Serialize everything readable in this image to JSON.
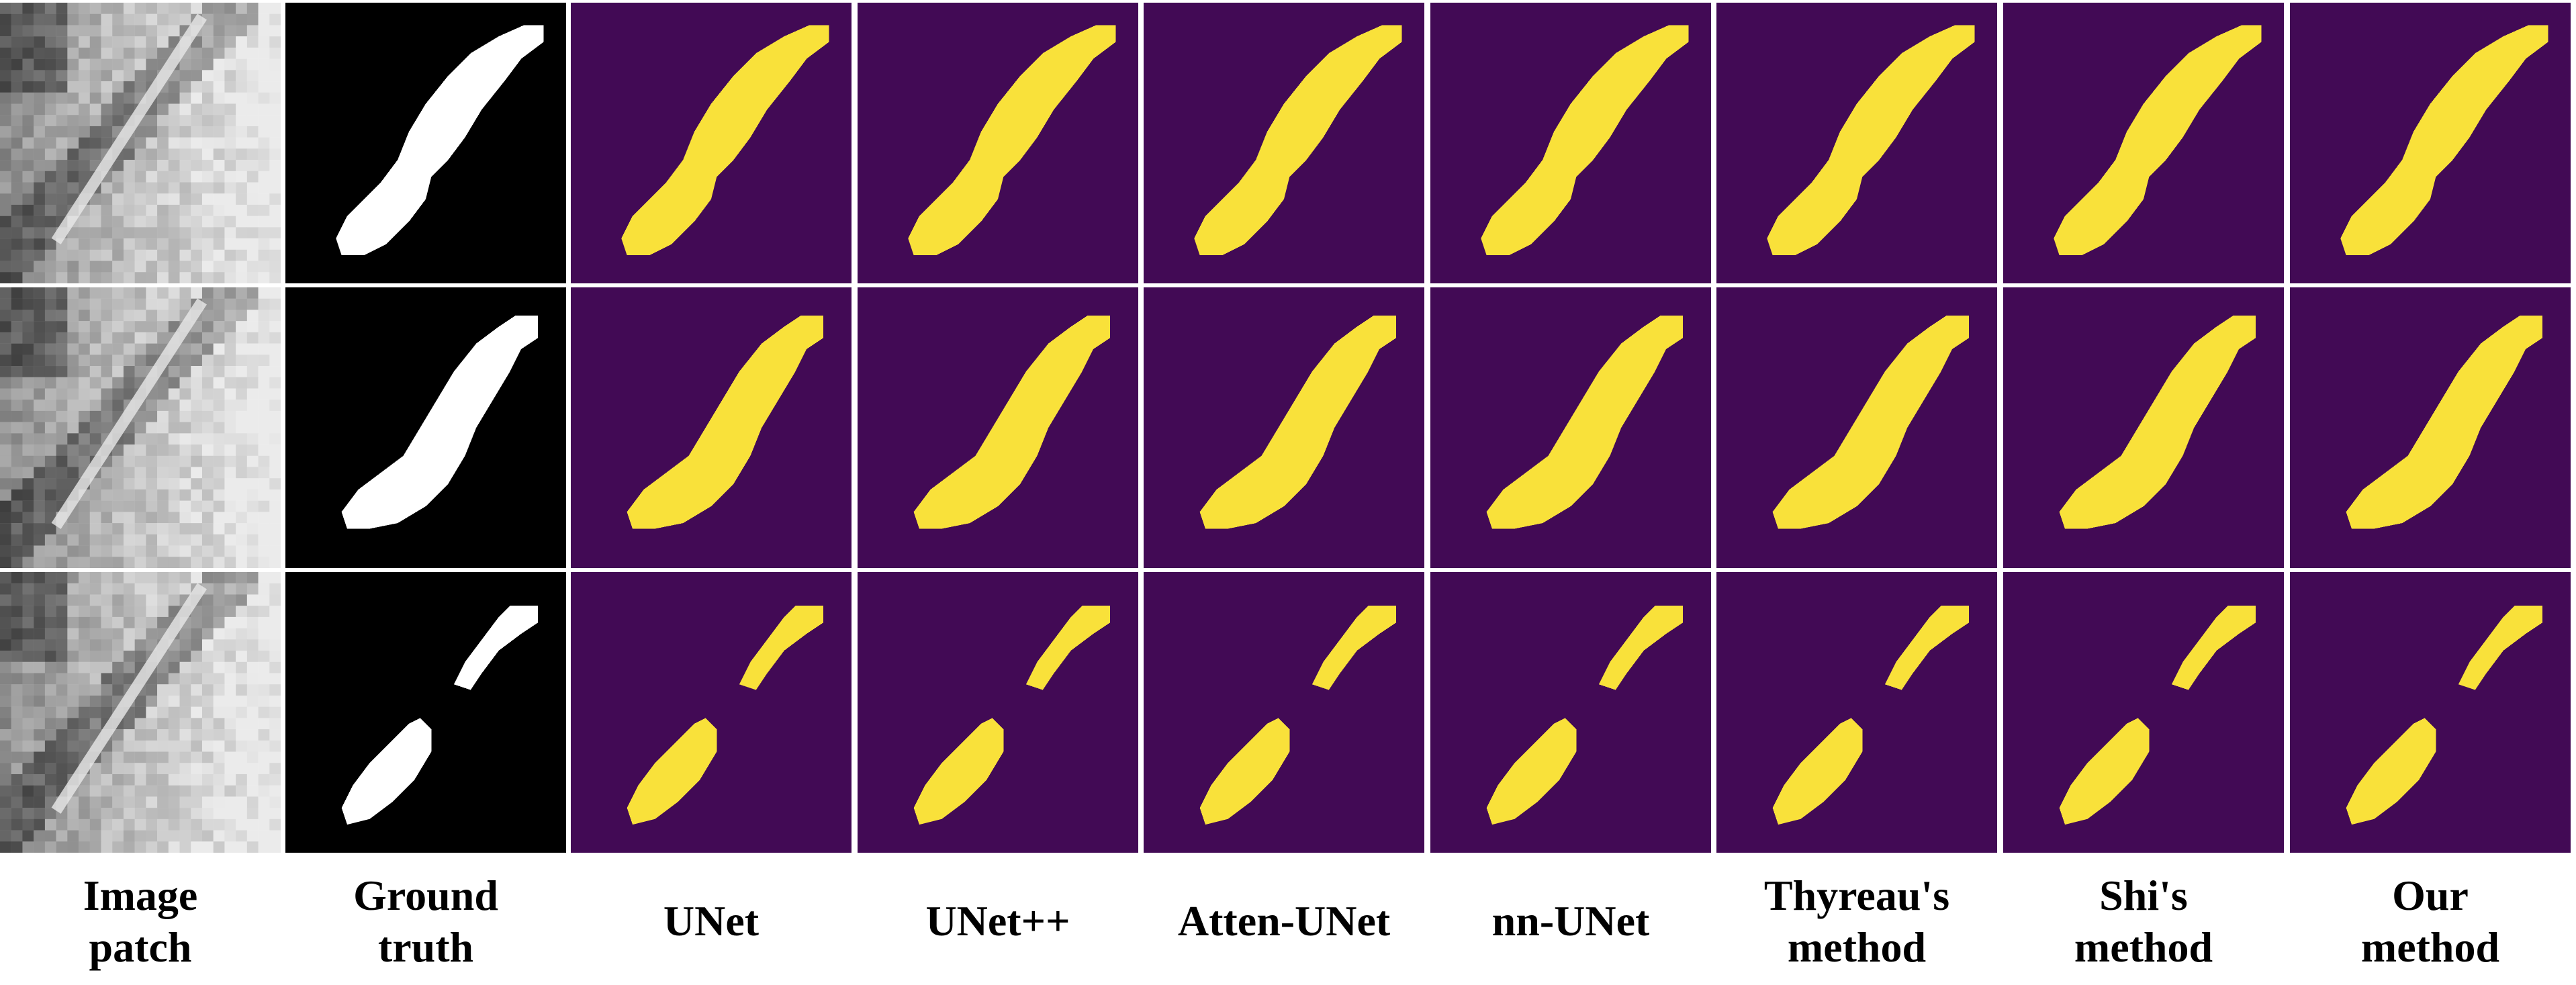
{
  "columns": [
    {
      "label": "Image\npatch",
      "kind": "image"
    },
    {
      "label": "Ground\ntruth",
      "kind": "gt"
    },
    {
      "label": "UNet",
      "kind": "pred"
    },
    {
      "label": "UNet++",
      "kind": "pred"
    },
    {
      "label": "Atten-UNet",
      "kind": "pred"
    },
    {
      "label": "nn-UNet",
      "kind": "pred"
    },
    {
      "label": "Thyreau's\nmethod",
      "kind": "pred"
    },
    {
      "label": "Shi's\nmethod",
      "kind": "pred"
    },
    {
      "label": "Our\nmethod",
      "kind": "pred"
    }
  ],
  "rows": 3,
  "colors": {
    "pred_background": "#420a55",
    "pred_foreground": "#f9e13a",
    "gt_background": "#000000",
    "gt_foreground": "#ffffff",
    "image_dark": "#3a3a3a",
    "image_light": "#c8c8c8"
  }
}
